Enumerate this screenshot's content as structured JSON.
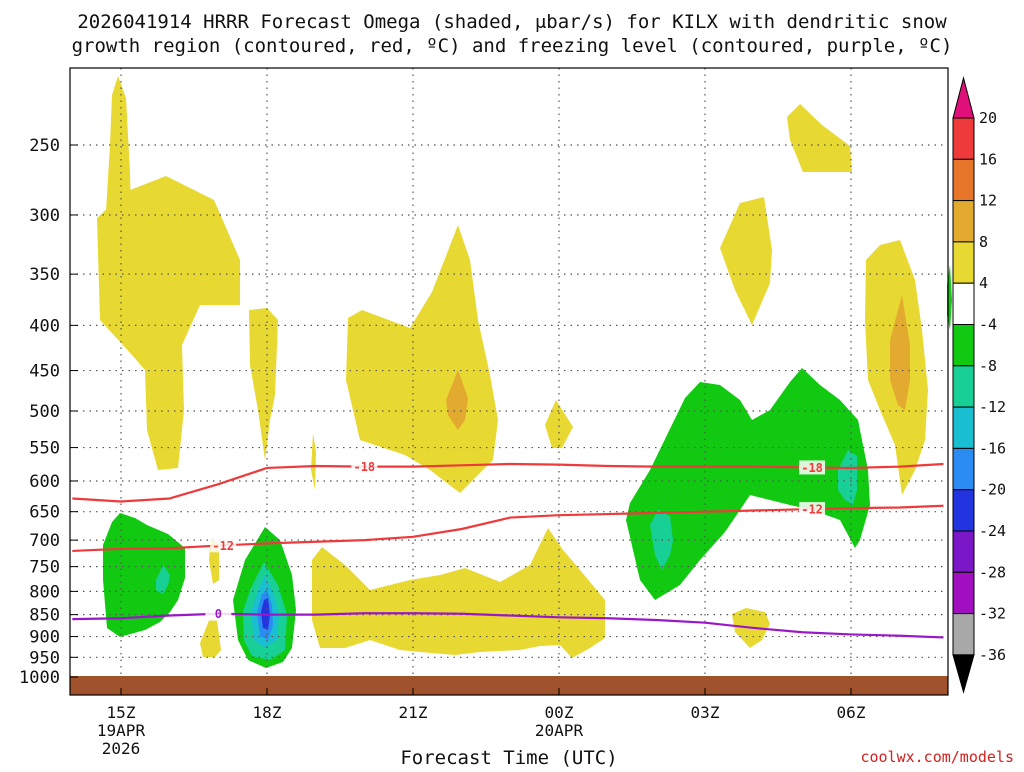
{
  "title_line1": "2026041914 HRRR Forecast Omega (shaded, μbar/s) for KILX with dendritic snow",
  "title_line2": "growth region (contoured, red, ºC) and freezing level (contoured, purple, ºC)",
  "xlabel": "Forecast Time (UTC)",
  "credit": "coolwx.com/models",
  "colors": {
    "yellow": "#e8d832",
    "orange": "#e3aa30",
    "green": "#11c911",
    "teal": "#18cf95",
    "cyan": "#19bfd0",
    "blue": "#2a8cf0",
    "darkblue": "#2233e0",
    "dendritic": "#ee3a3a",
    "freezing": "#9a18c8",
    "ground": "#a0522d"
  },
  "chart_data": {
    "type": "heatmap",
    "title": "2026041914 HRRR Forecast Omega (shaded, μbar/s) for KILX with dendritic snow growth region (contoured, red, ºC) and freezing level (contoured, purple, ºC)",
    "xlabel": "Forecast Time (UTC)",
    "ylabel": "",
    "y_scale": "log-pressure",
    "ylim": [
      1000,
      200
    ],
    "y_ticks": [
      250,
      300,
      350,
      400,
      450,
      500,
      550,
      600,
      650,
      700,
      750,
      800,
      850,
      900,
      950,
      1000
    ],
    "x_ticks": [
      {
        "label": "15Z",
        "sub1": "19APR",
        "sub2": "2026",
        "hour": 15
      },
      {
        "label": "18Z",
        "sub1": "",
        "sub2": "",
        "hour": 18
      },
      {
        "label": "21Z",
        "sub1": "",
        "sub2": "",
        "hour": 21
      },
      {
        "label": "00Z",
        "sub1": "20APR",
        "sub2": "",
        "hour": 24
      },
      {
        "label": "03Z",
        "sub1": "",
        "sub2": "",
        "hour": 27
      },
      {
        "label": "06Z",
        "sub1": "",
        "sub2": "",
        "hour": 30
      }
    ],
    "xlim_hours": [
      14,
      31.9
    ],
    "grid": true,
    "colorbar": {
      "labels": [
        "20",
        "16",
        "12",
        "8",
        "4",
        "-4",
        "-8",
        "-12",
        "-16",
        "-20",
        "-24",
        "-28",
        "-32",
        "-36"
      ],
      "colors": [
        "#ee3a3a",
        "#e7762a",
        "#e3aa30",
        "#e8d832",
        "#ffffff",
        "#11c911",
        "#18cf95",
        "#19bfd0",
        "#2a8cf0",
        "#2233e0",
        "#7a18c8",
        "#a010c0",
        "#a8a8a8"
      ],
      "top_arrow": "#e0107a",
      "bottom_arrow": "#000000"
    },
    "series": [
      {
        "name": "-18",
        "color": "#ee3a3a",
        "x": [
          14,
          15,
          16,
          17,
          18,
          19,
          20,
          21,
          22,
          23,
          24,
          25,
          26,
          27,
          28,
          29,
          30,
          31,
          31.9
        ],
        "y": [
          628,
          633,
          628,
          605,
          580,
          577,
          578,
          578,
          576,
          574,
          575,
          577,
          578,
          578,
          578,
          579,
          580,
          578,
          574
        ]
      },
      {
        "name": "-12",
        "color": "#ee3a3a",
        "x": [
          14,
          15,
          16,
          17,
          18,
          19,
          20,
          21,
          22,
          23,
          24,
          25,
          26,
          27,
          28,
          29,
          30,
          31,
          31.9
        ],
        "y": [
          720,
          716,
          715,
          710,
          706,
          703,
          700,
          694,
          680,
          660,
          656,
          654,
          652,
          650,
          648,
          646,
          644,
          643,
          640
        ]
      },
      {
        "name": "0",
        "color": "#9a18c8",
        "x": [
          14,
          15,
          16,
          17,
          18,
          19,
          20,
          21,
          22,
          23,
          24,
          25,
          26,
          27,
          28,
          29,
          30,
          31,
          31.9
        ],
        "y": [
          860,
          858,
          852,
          848,
          850,
          850,
          847,
          847,
          848,
          852,
          856,
          858,
          862,
          868,
          880,
          890,
          895,
          898,
          902
        ]
      }
    ]
  }
}
